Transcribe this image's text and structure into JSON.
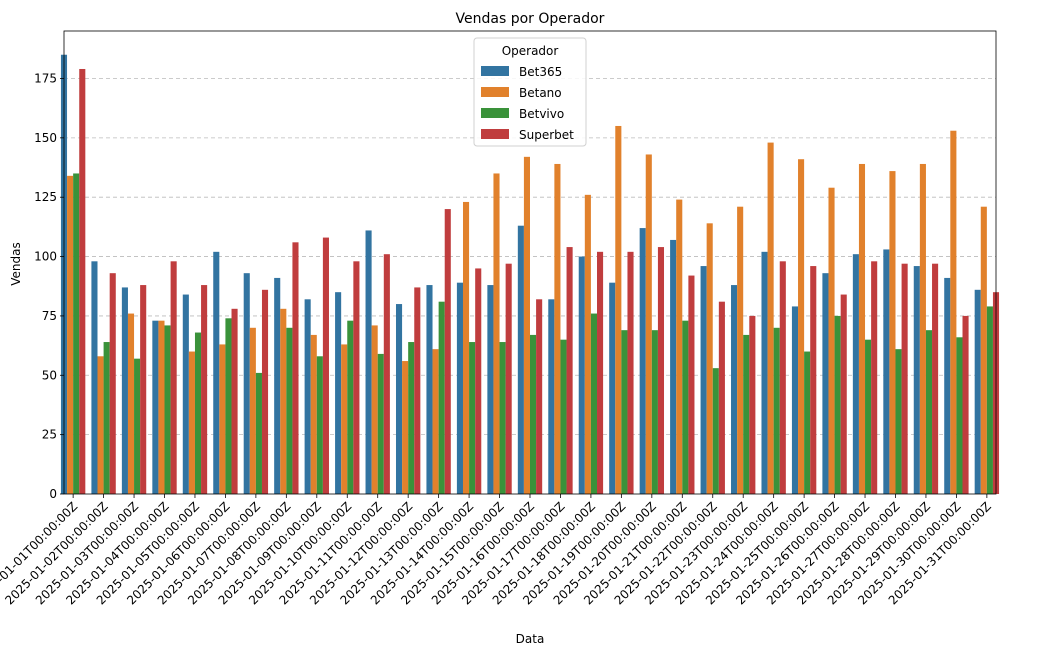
{
  "chart_data": {
    "type": "bar",
    "title": "Vendas por Operador",
    "xlabel": "Data",
    "ylabel": "Vendas",
    "ylim": [
      0,
      195
    ],
    "yticks": [
      0,
      25,
      50,
      75,
      100,
      125,
      150,
      175
    ],
    "grid": "y-dashed",
    "legend": {
      "title": "Operador",
      "placement": "top-center"
    },
    "categories": [
      "2025-01-01T00:00:00Z",
      "2025-01-02T00:00:00Z",
      "2025-01-03T00:00:00Z",
      "2025-01-04T00:00:00Z",
      "2025-01-05T00:00:00Z",
      "2025-01-06T00:00:00Z",
      "2025-01-07T00:00:00Z",
      "2025-01-08T00:00:00Z",
      "2025-01-09T00:00:00Z",
      "2025-01-10T00:00:00Z",
      "2025-01-11T00:00:00Z",
      "2025-01-12T00:00:00Z",
      "2025-01-13T00:00:00Z",
      "2025-01-14T00:00:00Z",
      "2025-01-15T00:00:00Z",
      "2025-01-16T00:00:00Z",
      "2025-01-17T00:00:00Z",
      "2025-01-18T00:00:00Z",
      "2025-01-19T00:00:00Z",
      "2025-01-20T00:00:00Z",
      "2025-01-21T00:00:00Z",
      "2025-01-22T00:00:00Z",
      "2025-01-23T00:00:00Z",
      "2025-01-24T00:00:00Z",
      "2025-01-25T00:00:00Z",
      "2025-01-26T00:00:00Z",
      "2025-01-27T00:00:00Z",
      "2025-01-28T00:00:00Z",
      "2025-01-29T00:00:00Z",
      "2025-01-30T00:00:00Z",
      "2025-01-31T00:00:00Z"
    ],
    "series": [
      {
        "name": "Bet365",
        "color": "#3274a1",
        "values": [
          185,
          98,
          87,
          73,
          84,
          102,
          93,
          91,
          82,
          85,
          111,
          80,
          88,
          89,
          88,
          113,
          82,
          100,
          89,
          112,
          107,
          96,
          88,
          102,
          79,
          93,
          101,
          103,
          96,
          91,
          86
        ]
      },
      {
        "name": "Betano",
        "color": "#e1812c",
        "values": [
          134,
          58,
          76,
          73,
          60,
          63,
          70,
          78,
          67,
          63,
          71,
          56,
          61,
          123,
          135,
          142,
          139,
          126,
          155,
          143,
          124,
          114,
          121,
          148,
          141,
          129,
          139,
          136,
          139,
          153,
          121
        ]
      },
      {
        "name": "Betvivo",
        "color": "#3a923a",
        "values": [
          135,
          64,
          57,
          71,
          68,
          74,
          51,
          70,
          58,
          73,
          59,
          64,
          81,
          64,
          64,
          67,
          65,
          76,
          69,
          69,
          73,
          53,
          67,
          70,
          60,
          75,
          65,
          61,
          69,
          66,
          79
        ]
      },
      {
        "name": "Superbet",
        "color": "#c03d3e",
        "values": [
          179,
          93,
          88,
          98,
          88,
          78,
          86,
          106,
          108,
          98,
          101,
          87,
          120,
          95,
          97,
          82,
          104,
          102,
          102,
          104,
          92,
          81,
          75,
          98,
          96,
          84,
          98,
          97,
          97,
          75,
          85
        ]
      }
    ]
  }
}
